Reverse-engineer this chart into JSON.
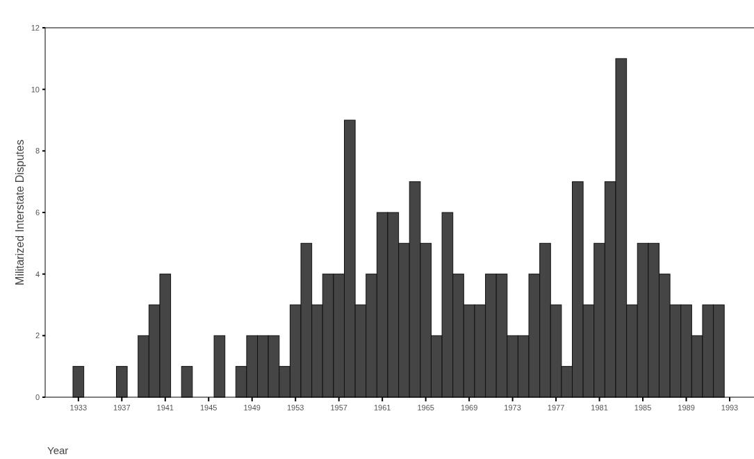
{
  "chart_data": {
    "type": "bar",
    "xlabel": "Year",
    "ylabel": "Militarized Interstate Disputes",
    "categories": [
      "1933",
      null,
      null,
      null,
      "1937",
      null,
      null,
      null,
      "1941",
      null,
      null,
      null,
      "1945",
      null,
      null,
      null,
      "1949",
      null,
      null,
      null,
      "1953",
      null,
      null,
      null,
      "1957",
      null,
      null,
      null,
      "1961",
      null,
      null,
      null,
      "1965",
      null,
      null,
      null,
      "1969",
      null,
      null,
      null,
      "1973",
      null,
      null,
      null,
      "1977",
      null,
      null,
      null,
      "1981",
      null,
      null,
      null,
      "1985",
      null,
      null,
      null,
      "1989",
      null,
      null,
      null,
      "1993"
    ],
    "values": [
      1,
      0,
      0,
      0,
      1,
      0,
      2,
      3,
      4,
      0,
      1,
      0,
      0,
      2,
      0,
      1,
      2,
      2,
      2,
      1,
      3,
      5,
      3,
      4,
      4,
      9,
      3,
      4,
      6,
      6,
      5,
      7,
      5,
      2,
      6,
      4,
      3,
      3,
      4,
      4,
      2,
      2,
      4,
      5,
      3,
      1,
      7,
      3,
      5,
      7,
      11,
      3,
      5,
      5,
      4,
      3,
      3,
      2,
      3,
      3,
      0
    ],
    "color": "#454545",
    "ylim": [
      0,
      12
    ],
    "yticks": [
      0,
      2,
      4,
      6,
      8,
      10,
      12
    ],
    "grid": false
  }
}
